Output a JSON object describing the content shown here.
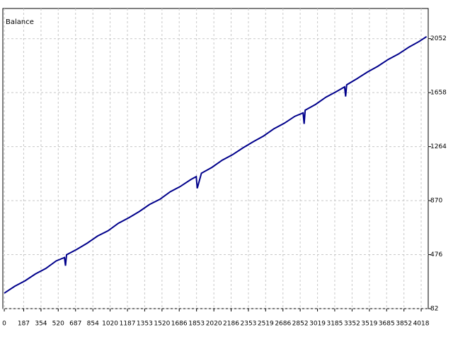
{
  "chart_data": {
    "type": "line",
    "title": "Balance",
    "x": [
      0,
      100,
      200,
      300,
      400,
      500,
      580,
      590,
      600,
      700,
      800,
      900,
      1000,
      1100,
      1200,
      1300,
      1400,
      1500,
      1600,
      1700,
      1800,
      1850,
      1860,
      1900,
      2000,
      2100,
      2200,
      2300,
      2400,
      2500,
      2600,
      2700,
      2800,
      2880,
      2890,
      2900,
      3000,
      3100,
      3200,
      3280,
      3290,
      3300,
      3400,
      3500,
      3600,
      3700,
      3800,
      3900,
      4000,
      4070
    ],
    "series": [
      {
        "name": "Balance",
        "color": "#00008b",
        "values": [
          195,
          245,
          285,
          335,
          375,
          430,
          455,
          395,
          475,
          515,
          560,
          612,
          650,
          705,
          745,
          790,
          842,
          880,
          935,
          975,
          1025,
          1045,
          960,
          1070,
          1112,
          1165,
          1205,
          1255,
          1300,
          1342,
          1395,
          1435,
          1485,
          1510,
          1430,
          1530,
          1572,
          1625,
          1665,
          1700,
          1630,
          1715,
          1760,
          1808,
          1850,
          1900,
          1940,
          1990,
          2032,
          2067
        ]
      }
    ],
    "xlim": [
      -14,
      4086
    ],
    "ylim": [
      82,
      2272
    ],
    "xticks": [
      0,
      187,
      354,
      520,
      687,
      854,
      1020,
      1187,
      1353,
      1520,
      1686,
      1853,
      2020,
      2186,
      2353,
      2519,
      2686,
      2852,
      3019,
      3185,
      3352,
      3519,
      3685,
      3852,
      4018
    ],
    "yticks": [
      82,
      476,
      870,
      1264,
      1658,
      2052
    ],
    "grid": true
  }
}
